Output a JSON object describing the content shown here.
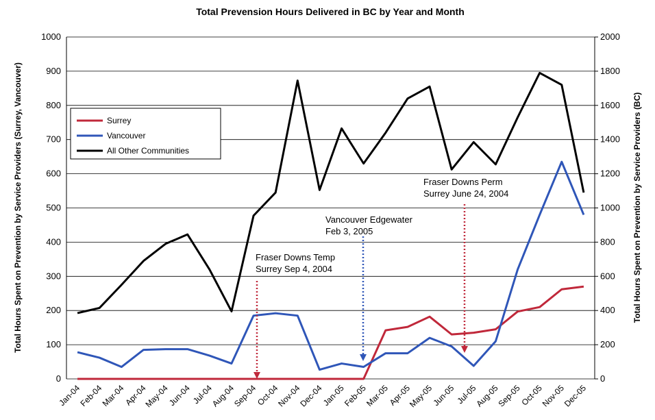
{
  "chart_data": {
    "type": "line",
    "title": "Total Prevension Hours Delivered in BC by Year and Month",
    "y_label": "Total Hours Spent on Prevention by Service Providers (Surrey, Vancouver)",
    "y2_label": "Total Hours Spent on Prevention by Service Providers (BC)",
    "categories": [
      "Jan-04",
      "Feb-04",
      "Mar-04",
      "Apr-04",
      "May-04",
      "Jun-04",
      "Jul-04",
      "Aug-04",
      "Sep-04",
      "Oct-04",
      "Nov-04",
      "Dec-04",
      "Jan-05",
      "Feb-05",
      "Mar-05",
      "Apr-05",
      "May-05",
      "Jun-05",
      "Jul-05",
      "Aug-05",
      "Sep-05",
      "Oct-05",
      "Nov-05",
      "Dec-05"
    ],
    "series": [
      {
        "name": "Surrey",
        "color": "#c0283a",
        "values": [
          0,
          0,
          0,
          0,
          0,
          0,
          0,
          0,
          0,
          0,
          0,
          0,
          0,
          0,
          142,
          152,
          182,
          130,
          135,
          145,
          197,
          210,
          262,
          270
        ]
      },
      {
        "name": "Vancouver",
        "color": "#2f56b8",
        "values": [
          78,
          62,
          35,
          85,
          87,
          87,
          68,
          45,
          185,
          192,
          185,
          27,
          45,
          35,
          75,
          75,
          120,
          95,
          38,
          110,
          320,
          480,
          635,
          480
        ]
      },
      {
        "name": "All Other Communities",
        "color": "#000000",
        "axis": "y2",
        "values": [
          385,
          415,
          550,
          690,
          790,
          845,
          640,
          395,
          955,
          1090,
          1745,
          1105,
          1465,
          1260,
          1440,
          1640,
          1710,
          1225,
          1385,
          1255,
          1530,
          1790,
          1720,
          1090
        ]
      }
    ],
    "ylim": [
      0,
      1000
    ],
    "yticks": [
      0,
      100,
      200,
      300,
      400,
      500,
      600,
      700,
      800,
      900,
      1000
    ],
    "y2lim": [
      0,
      2000
    ],
    "y2ticks": [
      0,
      200,
      400,
      600,
      800,
      1000,
      1200,
      1400,
      1600,
      1800,
      2000
    ],
    "grid": true,
    "legend": "upper left",
    "annotations": [
      {
        "lines": [
          "Fraser Downs Temp",
          "Surrey Sep 4, 2004"
        ],
        "color": "#c0283a"
      },
      {
        "lines": [
          "Vancouver Edgewater",
          "Feb 3, 2005"
        ],
        "color": "#2f56b8"
      },
      {
        "lines": [
          "Fraser Downs Perm",
          "Surrey June 24, 2004"
        ],
        "color": "#c0283a"
      }
    ]
  }
}
